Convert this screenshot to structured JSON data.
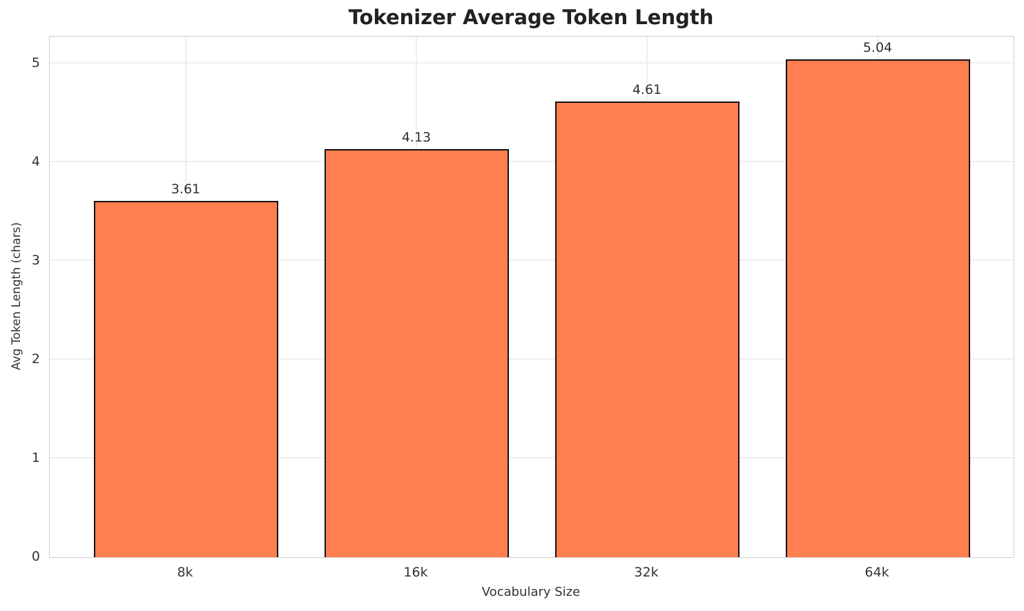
{
  "chart_data": {
    "type": "bar",
    "title": "Tokenizer Average Token Length",
    "xlabel": "Vocabulary Size",
    "ylabel": "Avg Token Length (chars)",
    "categories": [
      "8k",
      "16k",
      "32k",
      "64k"
    ],
    "values": [
      3.61,
      4.13,
      4.61,
      5.04
    ],
    "value_labels": [
      "3.61",
      "4.13",
      "4.61",
      "5.04"
    ],
    "yticks": [
      0,
      1,
      2,
      3,
      4,
      5
    ],
    "ylim": [
      0,
      5.27
    ],
    "grid": "both",
    "legend": "none",
    "bar_color": "#FF7F50",
    "bar_edge_color": "#111111",
    "grid_color": "#efefef",
    "spine_color": "#cccccc"
  }
}
